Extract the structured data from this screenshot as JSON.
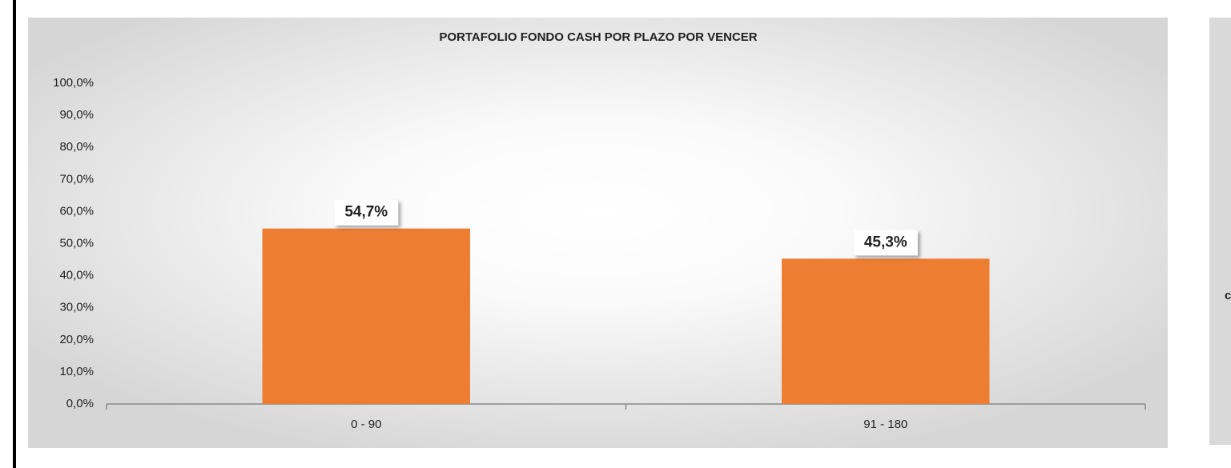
{
  "chart_data": {
    "type": "bar",
    "title": "PORTAFOLIO FONDO CASH POR PLAZO POR VENCER",
    "categories": [
      "0 - 90",
      "91 - 180"
    ],
    "values": [
      54.7,
      45.3
    ],
    "value_labels": [
      "54,7%",
      "45,3%"
    ],
    "color": "#ed7d31",
    "ylim": [
      0,
      100
    ],
    "yticks": [
      {
        "value": 0,
        "label": "0,0%"
      },
      {
        "value": 10,
        "label": "10,0%"
      },
      {
        "value": 20,
        "label": "20,0%"
      },
      {
        "value": 30,
        "label": "30,0%"
      },
      {
        "value": 40,
        "label": "40,0%"
      },
      {
        "value": 50,
        "label": "50,0%"
      },
      {
        "value": 60,
        "label": "60,0%"
      },
      {
        "value": 70,
        "label": "70,0%"
      },
      {
        "value": 80,
        "label": "80,0%"
      },
      {
        "value": 90,
        "label": "90,0%"
      },
      {
        "value": 100,
        "label": "100,0%"
      }
    ],
    "grid": false
  },
  "side_panel_text": "c"
}
